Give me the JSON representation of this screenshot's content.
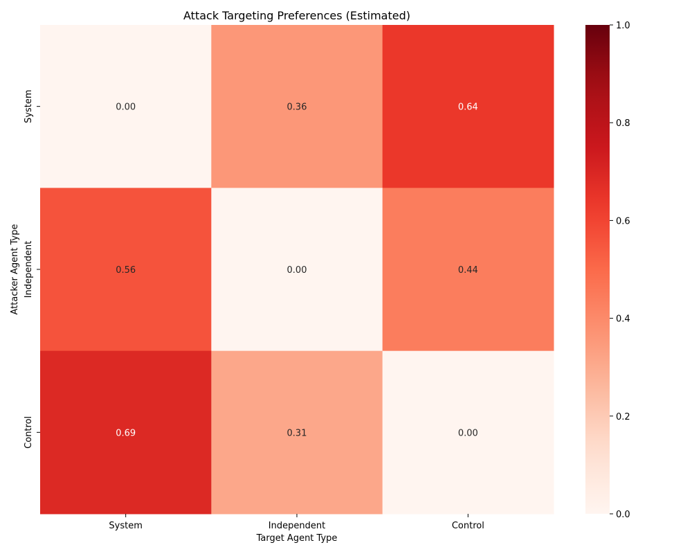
{
  "chart_data": {
    "type": "heatmap",
    "title": "Attack Targeting Preferences (Estimated)",
    "xlabel": "Target Agent Type",
    "ylabel": "Attacker Agent Type",
    "x_categories": [
      "System",
      "Independent",
      "Control"
    ],
    "y_categories": [
      "System",
      "Independent",
      "Control"
    ],
    "values": [
      [
        0.0,
        0.36,
        0.64
      ],
      [
        0.56,
        0.0,
        0.44
      ],
      [
        0.69,
        0.31,
        0.0
      ]
    ],
    "value_labels": [
      [
        "0.00",
        "0.36",
        "0.64"
      ],
      [
        "0.56",
        "0.00",
        "0.44"
      ],
      [
        "0.69",
        "0.31",
        "0.00"
      ]
    ],
    "colorbar": {
      "min": 0,
      "max": 1,
      "ticks": [
        "0.0",
        "0.2",
        "0.4",
        "0.6",
        "0.8",
        "1.0"
      ],
      "colormap": "Reds"
    },
    "grid": false
  }
}
